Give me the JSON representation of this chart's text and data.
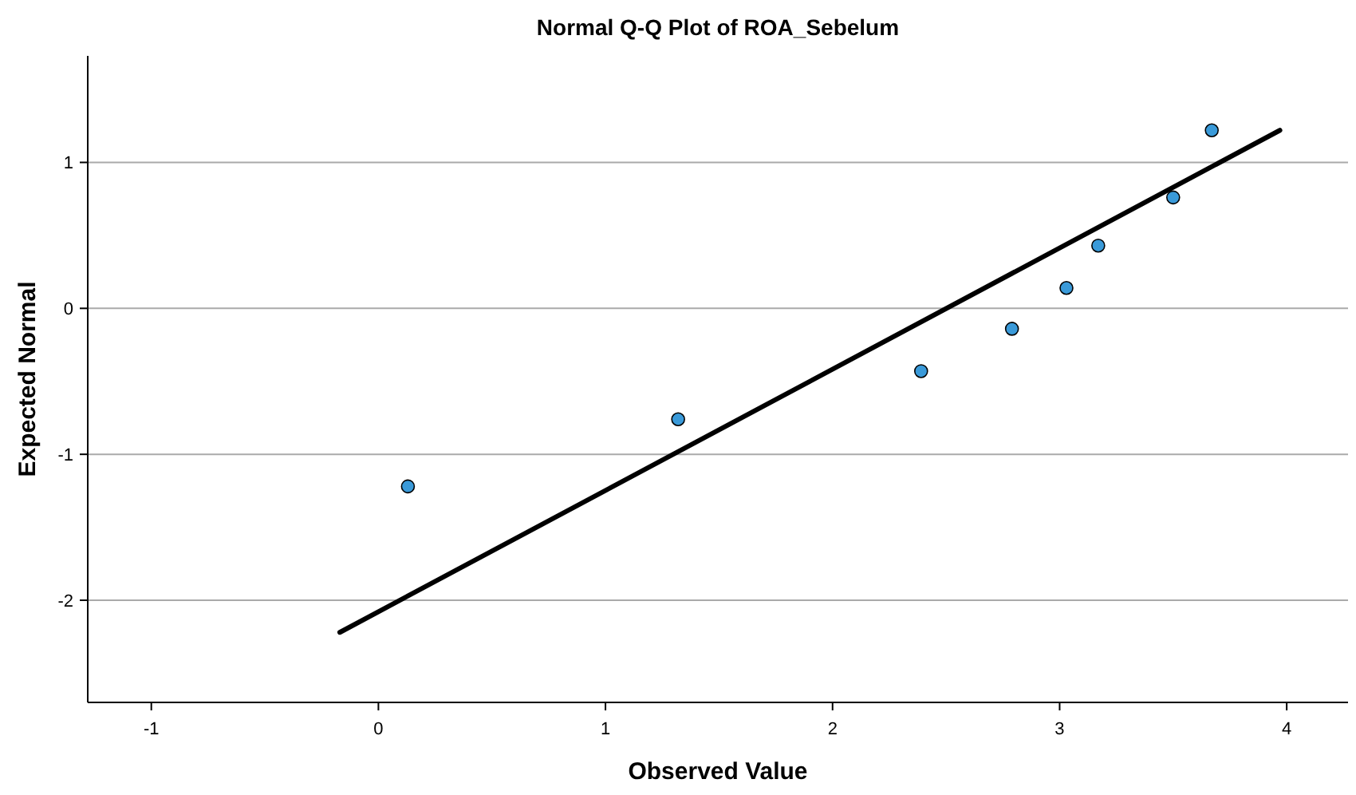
{
  "chart_data": {
    "type": "scatter",
    "title": "Normal Q-Q Plot of ROA_Sebelum",
    "xlabel": "Observed Value",
    "ylabel": "Expected Normal",
    "xlim": [
      -1.28,
      4.27
    ],
    "xticks": [
      -1,
      0,
      1,
      2,
      3,
      4
    ],
    "ylim": [
      -2.7,
      1.73
    ],
    "yticks": [
      -2,
      -1,
      0,
      1
    ],
    "grid": "y",
    "series": [
      {
        "marker": "circle",
        "color": "#3a9ad9",
        "x": [
          0.13,
          1.32,
          2.39,
          2.79,
          3.03,
          3.17,
          3.5,
          3.67
        ],
        "values": [
          -1.22,
          -0.76,
          -0.43,
          -0.14,
          0.14,
          0.43,
          0.76,
          1.22
        ]
      },
      {
        "type": "line",
        "color": "#000000",
        "x": [
          -0.17,
          3.97
        ],
        "values": [
          -2.22,
          1.22
        ]
      }
    ]
  }
}
